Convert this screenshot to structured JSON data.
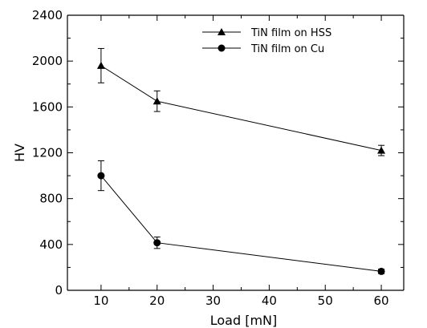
{
  "chart_data": {
    "type": "line",
    "xlabel": "Load [mN]",
    "ylabel": "HV",
    "xlim": [
      4,
      64
    ],
    "ylim": [
      0,
      2400
    ],
    "xticks": [
      10,
      20,
      30,
      40,
      50,
      60
    ],
    "yticks": [
      0,
      400,
      800,
      1200,
      1600,
      2000,
      2400
    ],
    "grid": false,
    "legend_position": "top-right",
    "series": [
      {
        "name": "TiN film on HSS",
        "marker": "triangle",
        "x": [
          10,
          20,
          60
        ],
        "y": [
          1960,
          1650,
          1220
        ],
        "err": [
          150,
          90,
          45
        ]
      },
      {
        "name": "TiN film on Cu",
        "marker": "circle",
        "x": [
          10,
          20,
          60
        ],
        "y": [
          1000,
          415,
          165
        ],
        "err": [
          130,
          50,
          20
        ]
      }
    ]
  }
}
